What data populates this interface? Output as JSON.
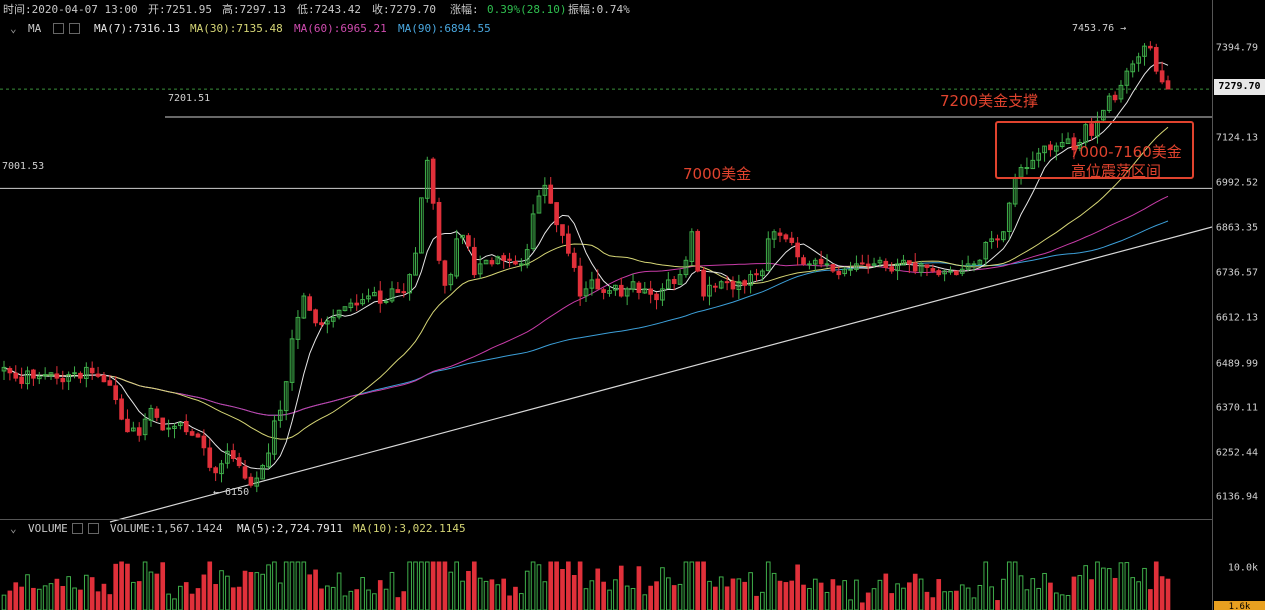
{
  "header": {
    "time_label": "时间:2020-04-07 13:00",
    "open_label": "开:7251.95",
    "high_label": "高:7297.13",
    "low_label": "低:7243.42",
    "close_label": "收:7279.70",
    "change_label": "涨幅:",
    "change_value": "0.39%(28.10)",
    "amplitude_label": "振幅:0.74%"
  },
  "ma_bar": {
    "title": "MA",
    "ma7": "MA(7):7316.13",
    "ma30": "MA(30):7135.48",
    "ma60": "MA(60):6965.21",
    "ma90": "MA(90):6894.55"
  },
  "volume_bar": {
    "title": "VOLUME",
    "volume": "VOLUME:1,567.1424",
    "ma5": "MA(5):2,724.7911",
    "ma10": "MA(10):3,022.1145"
  },
  "price_axis": {
    "ticks": [
      "7394.79",
      "7124.13",
      "6992.52",
      "6863.35",
      "6736.57",
      "6612.13",
      "6489.99",
      "6370.11",
      "6252.44",
      "6136.94"
    ],
    "last_price": "7279.70",
    "volume_ticks": [
      "10.0k"
    ],
    "volume_box": "1.6k"
  },
  "labels": {
    "high_marker": "7453.76 →",
    "low_marker": "← 6150",
    "line_7201": "7201.51",
    "line_7001": "7001.53"
  },
  "annotations": {
    "support": "7200美金支撑",
    "level_7000": "7000美金",
    "range_line1": "7000-7160美金",
    "range_line2": "高位震荡区间"
  },
  "colors": {
    "up": "#3fae4a",
    "down": "#e0303a",
    "ma7": "#e6e6e6",
    "ma30": "#d6d676",
    "ma60": "#c83ca8",
    "ma90": "#3c9fd8",
    "annotation": "#e0432e",
    "change": "#2fbf4f"
  },
  "chart_data": {
    "type": "candlestick",
    "instrument_interval": "hourly",
    "ylim": [
      6100,
      7480
    ],
    "y_ticks": [
      7394.79,
      7124.13,
      6992.52,
      6863.35,
      6736.57,
      6612.13,
      6489.99,
      6370.11,
      6252.44,
      6136.94
    ],
    "last_bar": {
      "time": "2020-04-07 13:00",
      "open": 7251.95,
      "high": 7297.13,
      "low": 7243.42,
      "close": 7279.7
    },
    "marked_high": 7453.76,
    "marked_low": 6150,
    "horizontal_levels": [
      7201.51,
      7001.53
    ],
    "closes": [
      6500,
      6485,
      6470,
      6455,
      6490,
      6470,
      6475,
      6480,
      6485,
      6470,
      6460,
      6480,
      6485,
      6470,
      6500,
      6485,
      6475,
      6460,
      6450,
      6410,
      6355,
      6320,
      6330,
      6310,
      6355,
      6385,
      6360,
      6325,
      6330,
      6335,
      6345,
      6320,
      6310,
      6305,
      6275,
      6220,
      6205,
      6230,
      6265,
      6245,
      6225,
      6190,
      6170,
      6190,
      6225,
      6260,
      6350,
      6380,
      6460,
      6580,
      6640,
      6700,
      6660,
      6625,
      6620,
      6630,
      6640,
      6660,
      6670,
      6680,
      6675,
      6690,
      6700,
      6710,
      6680,
      6685,
      6720,
      6710,
      6710,
      6760,
      6820,
      6975,
      7080,
      6960,
      6800,
      6730,
      6760,
      6860,
      6870,
      6840,
      6760,
      6790,
      6800,
      6790,
      6810,
      6800,
      6800,
      6790,
      6790,
      6830,
      6930,
      6980,
      7010,
      6960,
      6900,
      6870,
      6820,
      6780,
      6700,
      6720,
      6745,
      6720,
      6710,
      6715,
      6730,
      6700,
      6720,
      6740,
      6710,
      6720,
      6705,
      6690,
      6720,
      6745,
      6735,
      6760,
      6800,
      6880,
      6770,
      6700,
      6730,
      6725,
      6740,
      6740,
      6720,
      6740,
      6730,
      6760,
      6760,
      6770,
      6860,
      6880,
      6870,
      6860,
      6850,
      6810,
      6790,
      6790,
      6800,
      6790,
      6790,
      6770,
      6760,
      6775,
      6775,
      6790,
      6790,
      6785,
      6790,
      6800,
      6780,
      6770,
      6790,
      6800,
      6790,
      6770,
      6790,
      6780,
      6770,
      6760,
      6770,
      6770,
      6760,
      6775,
      6790,
      6790,
      6800,
      6850,
      6860,
      6860,
      6880,
      6960,
      7030,
      7060,
      7060,
      7080,
      7100,
      7120,
      7110,
      7120,
      7130,
      7140,
      7110,
      7130,
      7180,
      7150,
      7190,
      7220,
      7260,
      7250,
      7290,
      7330,
      7350,
      7370,
      7400,
      7395,
      7330,
      7300,
      7280
    ]
  }
}
